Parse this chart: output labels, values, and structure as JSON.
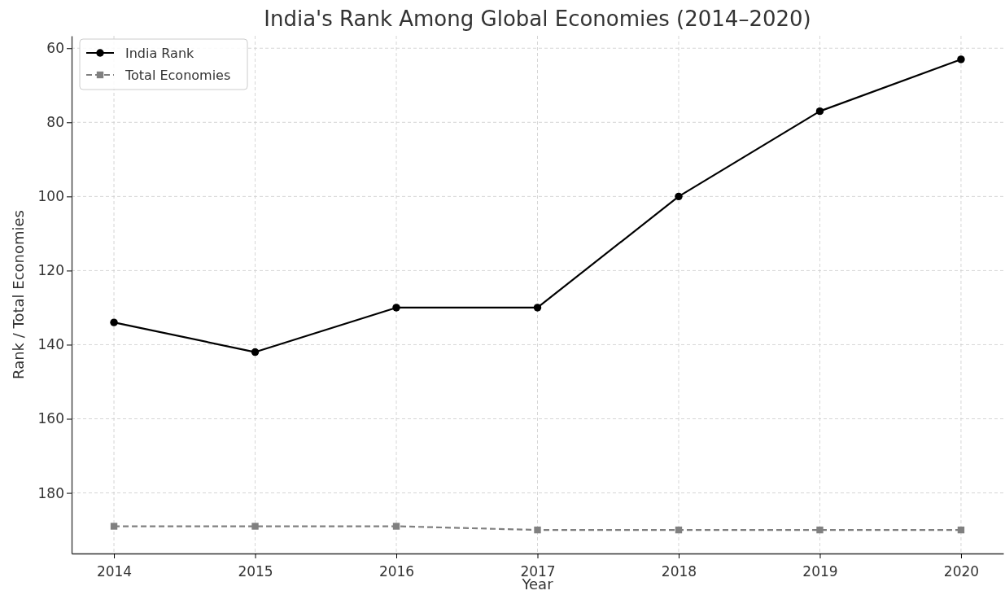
{
  "chart_data": {
    "type": "line",
    "title": "India's Rank Among Global Economies (2014–2020)",
    "xlabel": "Year",
    "ylabel": "Rank / Total Economies",
    "x": [
      2014,
      2015,
      2016,
      2017,
      2018,
      2019,
      2020
    ],
    "xlim": [
      2013.7,
      2020.3
    ],
    "xticks": [
      2014,
      2015,
      2016,
      2017,
      2018,
      2019,
      2020
    ],
    "ylim": [
      196.35,
      56.65
    ],
    "yticks": [
      60,
      80,
      100,
      120,
      140,
      160,
      180
    ],
    "grid": true,
    "legend": "top left",
    "series": [
      {
        "name": "India Rank",
        "color": "#000000",
        "marker": "circle",
        "line_style": "solid",
        "values": [
          134,
          142,
          130,
          130,
          100,
          77,
          63
        ]
      },
      {
        "name": "Total Economies",
        "color": "#808080",
        "marker": "square",
        "line_style": "dashed",
        "values": [
          189,
          189,
          189,
          190,
          190,
          190,
          190
        ]
      }
    ]
  }
}
